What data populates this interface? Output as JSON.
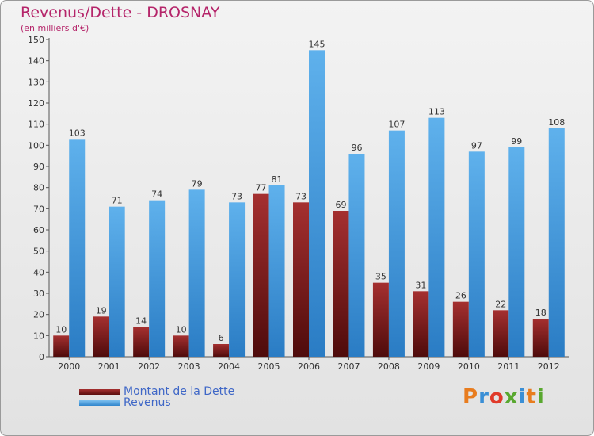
{
  "chart_data": {
    "type": "bar",
    "title": "Revenus/Dette - DROSNAY",
    "subtitle": "(en milliers d'€)",
    "categories": [
      "2000",
      "2001",
      "2002",
      "2003",
      "2004",
      "2005",
      "2006",
      "2007",
      "2008",
      "2009",
      "2010",
      "2011",
      "2012"
    ],
    "series": [
      {
        "name": "Montant de la Dette",
        "values": [
          10,
          19,
          14,
          10,
          6,
          77,
          73,
          69,
          35,
          31,
          26,
          22,
          18
        ],
        "color": "#7a1e1e"
      },
      {
        "name": "Revenus",
        "values": [
          103,
          71,
          74,
          79,
          73,
          81,
          145,
          96,
          107,
          113,
          97,
          99,
          108
        ],
        "color": "#4ea3e2"
      }
    ],
    "ylim": [
      0,
      150
    ],
    "yticks": [
      0,
      10,
      20,
      30,
      40,
      50,
      60,
      70,
      80,
      90,
      100,
      110,
      120,
      130,
      140,
      150
    ],
    "grid": false,
    "legend_position": "bottom-left"
  },
  "legend": {
    "dette_label": "Montant de la Dette",
    "revenus_label": "Revenus"
  },
  "logo": {
    "text": "Proxiti",
    "colors": [
      "#e87c1e",
      "#3a8fd6",
      "#e03a2a",
      "#59a82f",
      "#3a8fd6",
      "#e87c1e",
      "#59a82f"
    ]
  }
}
